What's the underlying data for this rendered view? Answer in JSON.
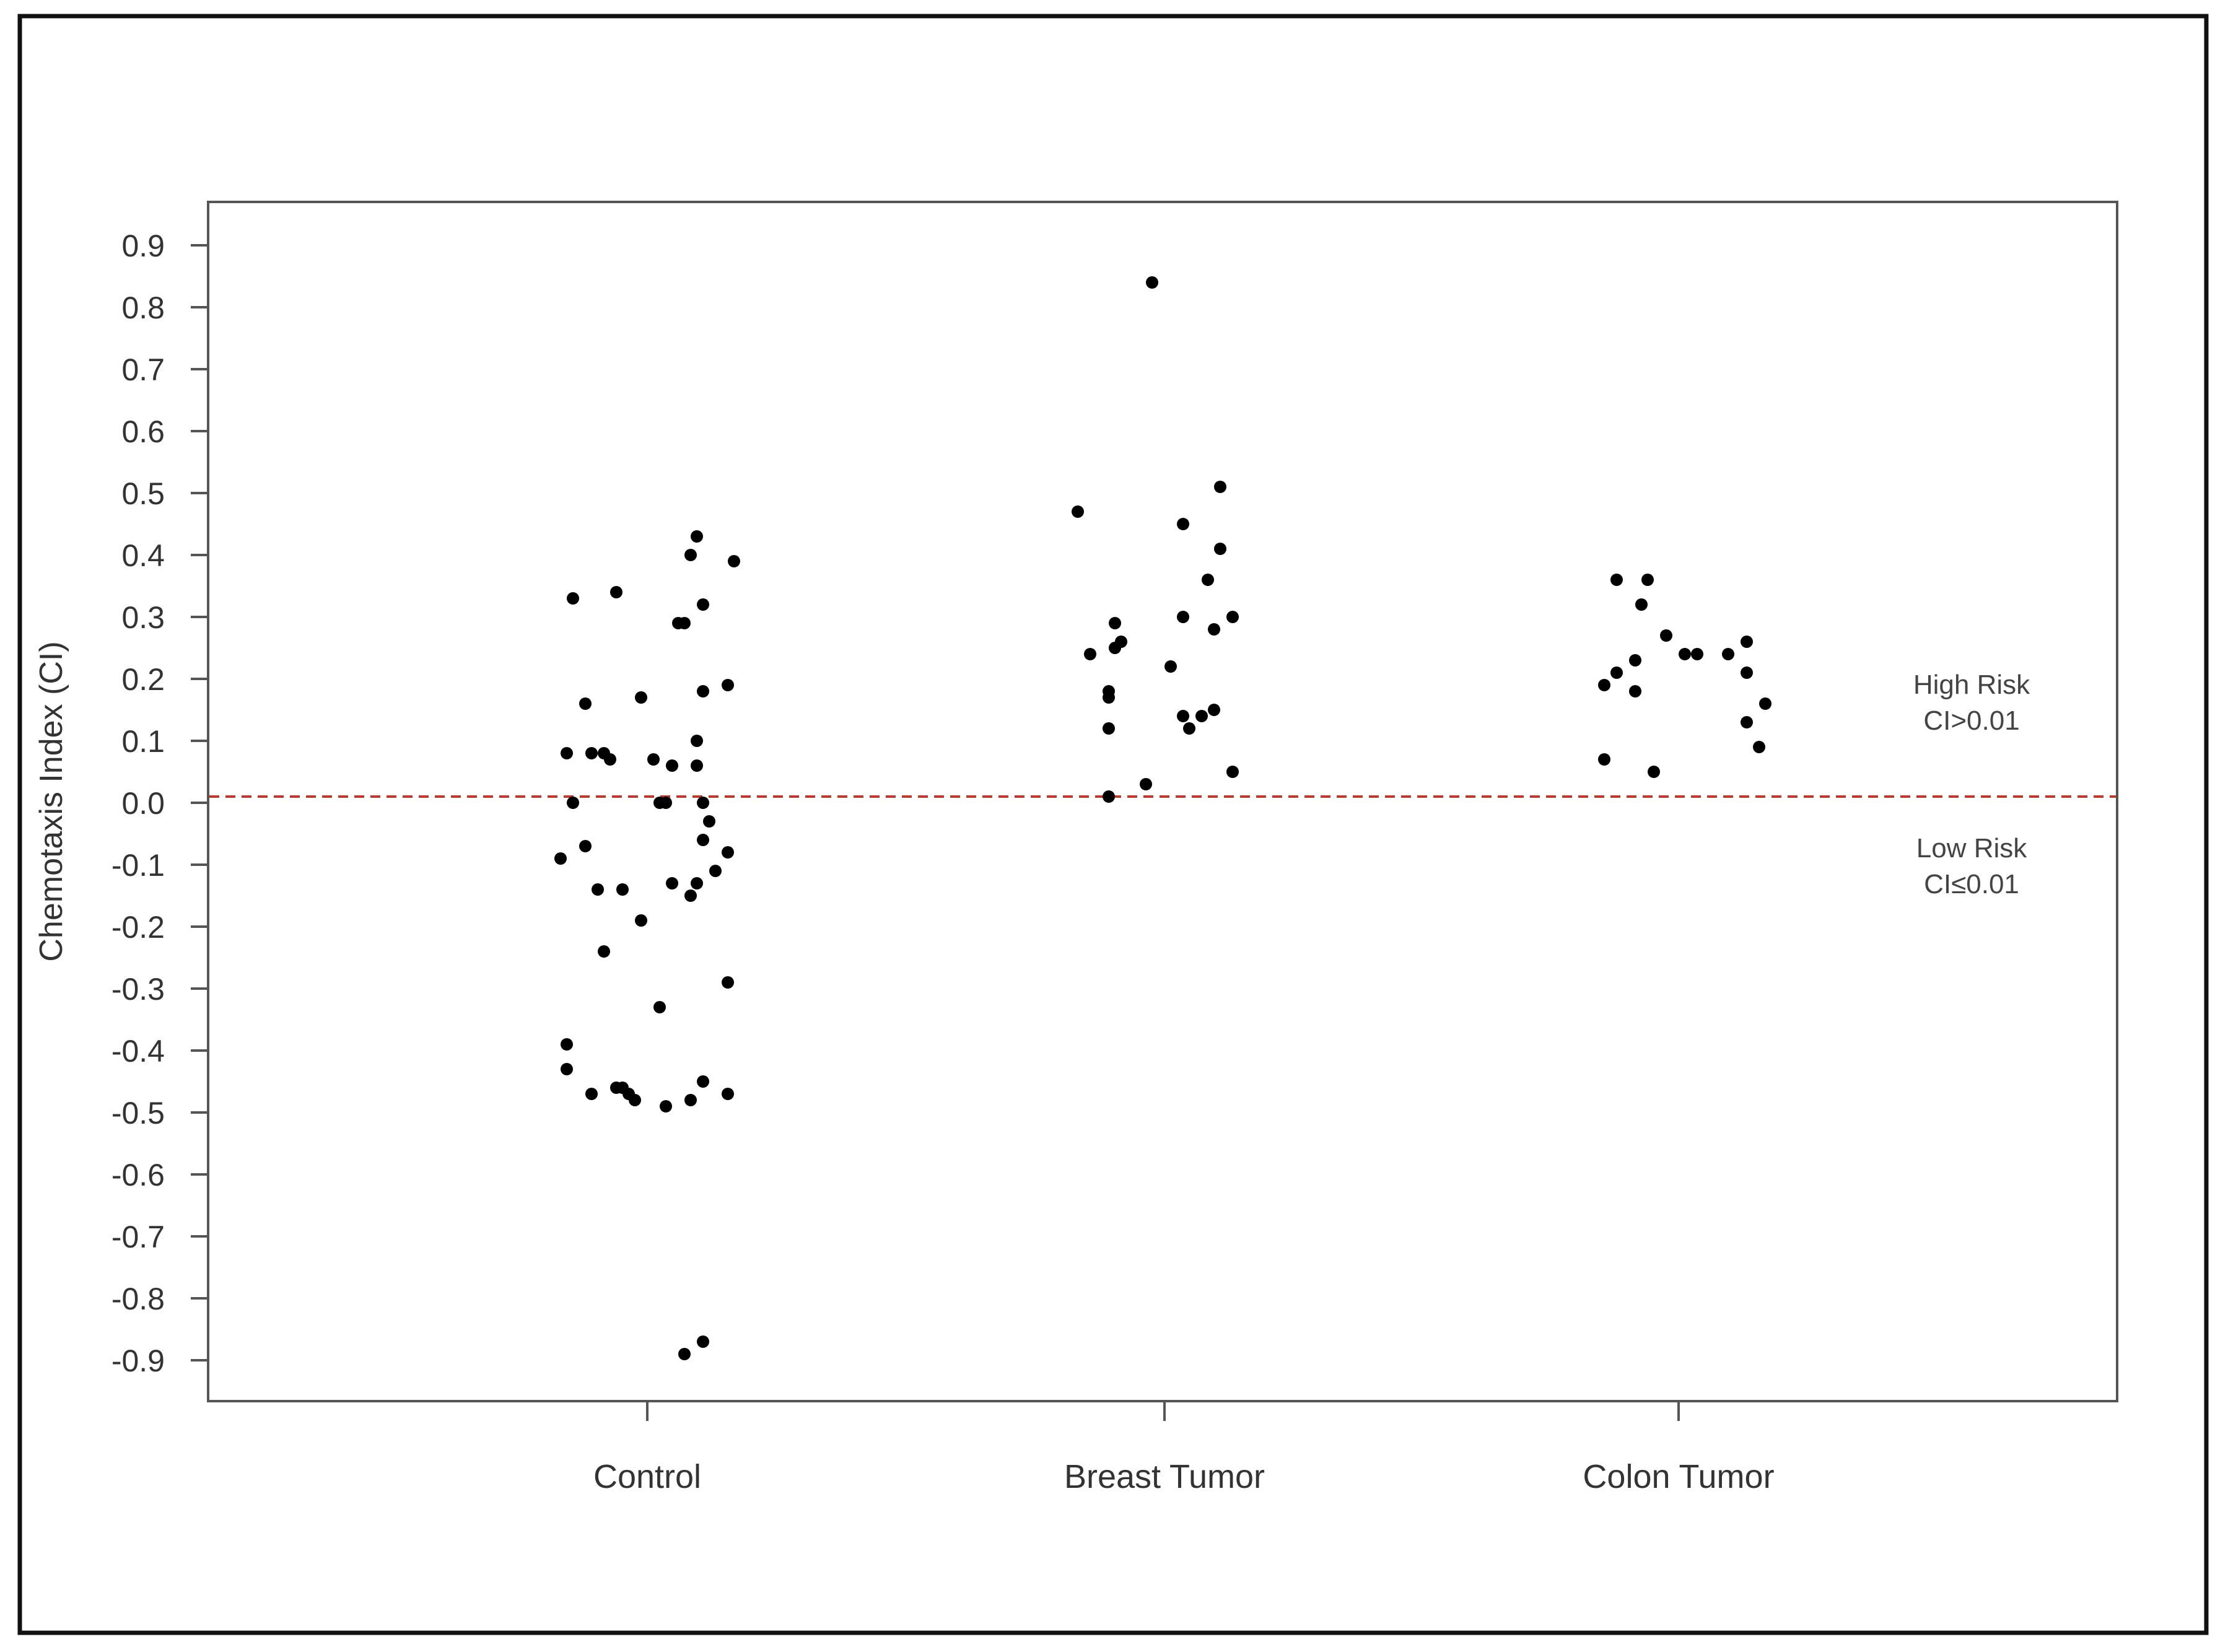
{
  "chart_data": {
    "type": "scatter",
    "title": "",
    "xlabel": "",
    "ylabel": "Chemotaxis Index (CI)",
    "categories": [
      "Control",
      "Breast Tumor",
      "Colon Tumor"
    ],
    "ylim": [
      -0.97,
      0.98
    ],
    "yticks": [
      "0.9",
      "0.8",
      "0.7",
      "0.6",
      "0.5",
      "0.4",
      "0.3",
      "0.2",
      "0.1",
      "0.0",
      "-0.1",
      "-0.2",
      "-0.3",
      "-0.4",
      "-0.5",
      "-0.6",
      "-0.7",
      "-0.8",
      "-0.9"
    ],
    "grid": false,
    "threshold": {
      "value": 0.01,
      "color": "#c0392b",
      "style": "dashed"
    },
    "annotations": {
      "high": [
        "High Risk",
        "CI>0.01"
      ],
      "low": [
        "Low Risk",
        "CI≤0.01"
      ]
    },
    "series": [
      {
        "category": "Control",
        "points": [
          {
            "jitter": -0.12,
            "y": 0.33
          },
          {
            "jitter": -0.05,
            "y": 0.34
          },
          {
            "jitter": 0.08,
            "y": 0.43
          },
          {
            "jitter": 0.07,
            "y": 0.4
          },
          {
            "jitter": 0.14,
            "y": 0.39
          },
          {
            "jitter": 0.09,
            "y": 0.32
          },
          {
            "jitter": 0.05,
            "y": 0.29
          },
          {
            "jitter": 0.06,
            "y": 0.29
          },
          {
            "jitter": -0.1,
            "y": 0.16
          },
          {
            "jitter": -0.01,
            "y": 0.17
          },
          {
            "jitter": 0.09,
            "y": 0.18
          },
          {
            "jitter": 0.13,
            "y": 0.19
          },
          {
            "jitter": -0.13,
            "y": 0.08
          },
          {
            "jitter": -0.09,
            "y": 0.08
          },
          {
            "jitter": -0.07,
            "y": 0.08
          },
          {
            "jitter": -0.06,
            "y": 0.07
          },
          {
            "jitter": 0.01,
            "y": 0.07
          },
          {
            "jitter": 0.04,
            "y": 0.06
          },
          {
            "jitter": 0.08,
            "y": 0.1
          },
          {
            "jitter": 0.08,
            "y": 0.06
          },
          {
            "jitter": -0.12,
            "y": 0.0
          },
          {
            "jitter": 0.02,
            "y": 0.0
          },
          {
            "jitter": 0.03,
            "y": 0.0
          },
          {
            "jitter": 0.09,
            "y": 0.0
          },
          {
            "jitter": 0.1,
            "y": -0.03
          },
          {
            "jitter": 0.09,
            "y": -0.06
          },
          {
            "jitter": -0.14,
            "y": -0.09
          },
          {
            "jitter": -0.1,
            "y": -0.07
          },
          {
            "jitter": 0.13,
            "y": -0.08
          },
          {
            "jitter": 0.11,
            "y": -0.11
          },
          {
            "jitter": -0.08,
            "y": -0.14
          },
          {
            "jitter": -0.04,
            "y": -0.14
          },
          {
            "jitter": 0.04,
            "y": -0.13
          },
          {
            "jitter": 0.08,
            "y": -0.13
          },
          {
            "jitter": 0.07,
            "y": -0.15
          },
          {
            "jitter": -0.01,
            "y": -0.19
          },
          {
            "jitter": -0.07,
            "y": -0.24
          },
          {
            "jitter": 0.13,
            "y": -0.29
          },
          {
            "jitter": 0.02,
            "y": -0.33
          },
          {
            "jitter": -0.13,
            "y": -0.39
          },
          {
            "jitter": -0.13,
            "y": -0.43
          },
          {
            "jitter": -0.09,
            "y": -0.47
          },
          {
            "jitter": -0.05,
            "y": -0.46
          },
          {
            "jitter": -0.04,
            "y": -0.46
          },
          {
            "jitter": -0.03,
            "y": -0.47
          },
          {
            "jitter": -0.02,
            "y": -0.48
          },
          {
            "jitter": 0.03,
            "y": -0.49
          },
          {
            "jitter": 0.07,
            "y": -0.48
          },
          {
            "jitter": 0.09,
            "y": -0.45
          },
          {
            "jitter": 0.13,
            "y": -0.47
          },
          {
            "jitter": 0.06,
            "y": -0.89
          },
          {
            "jitter": 0.09,
            "y": -0.87
          }
        ]
      },
      {
        "category": "Breast Tumor",
        "points": [
          {
            "jitter": -0.02,
            "y": 0.84
          },
          {
            "jitter": -0.14,
            "y": 0.47
          },
          {
            "jitter": 0.09,
            "y": 0.51
          },
          {
            "jitter": 0.03,
            "y": 0.45
          },
          {
            "jitter": 0.09,
            "y": 0.41
          },
          {
            "jitter": 0.07,
            "y": 0.36
          },
          {
            "jitter": -0.08,
            "y": 0.29
          },
          {
            "jitter": 0.03,
            "y": 0.3
          },
          {
            "jitter": 0.11,
            "y": 0.3
          },
          {
            "jitter": 0.08,
            "y": 0.28
          },
          {
            "jitter": -0.07,
            "y": 0.26
          },
          {
            "jitter": -0.08,
            "y": 0.25
          },
          {
            "jitter": -0.12,
            "y": 0.24
          },
          {
            "jitter": 0.01,
            "y": 0.22
          },
          {
            "jitter": -0.09,
            "y": 0.18
          },
          {
            "jitter": -0.09,
            "y": 0.17
          },
          {
            "jitter": 0.03,
            "y": 0.14
          },
          {
            "jitter": 0.06,
            "y": 0.14
          },
          {
            "jitter": 0.08,
            "y": 0.15
          },
          {
            "jitter": 0.04,
            "y": 0.12
          },
          {
            "jitter": -0.09,
            "y": 0.12
          },
          {
            "jitter": 0.11,
            "y": 0.05
          },
          {
            "jitter": -0.03,
            "y": 0.03
          },
          {
            "jitter": -0.09,
            "y": 0.01
          }
        ]
      },
      {
        "category": "Colon Tumor",
        "points": [
          {
            "jitter": -0.1,
            "y": 0.36
          },
          {
            "jitter": -0.05,
            "y": 0.36
          },
          {
            "jitter": -0.06,
            "y": 0.32
          },
          {
            "jitter": -0.02,
            "y": 0.27
          },
          {
            "jitter": 0.01,
            "y": 0.24
          },
          {
            "jitter": 0.03,
            "y": 0.24
          },
          {
            "jitter": 0.08,
            "y": 0.24
          },
          {
            "jitter": 0.11,
            "y": 0.26
          },
          {
            "jitter": -0.07,
            "y": 0.23
          },
          {
            "jitter": -0.1,
            "y": 0.21
          },
          {
            "jitter": -0.12,
            "y": 0.19
          },
          {
            "jitter": -0.07,
            "y": 0.18
          },
          {
            "jitter": 0.11,
            "y": 0.21
          },
          {
            "jitter": 0.14,
            "y": 0.16
          },
          {
            "jitter": 0.11,
            "y": 0.13
          },
          {
            "jitter": 0.13,
            "y": 0.09
          },
          {
            "jitter": -0.12,
            "y": 0.07
          },
          {
            "jitter": -0.04,
            "y": 0.05
          }
        ]
      }
    ]
  }
}
